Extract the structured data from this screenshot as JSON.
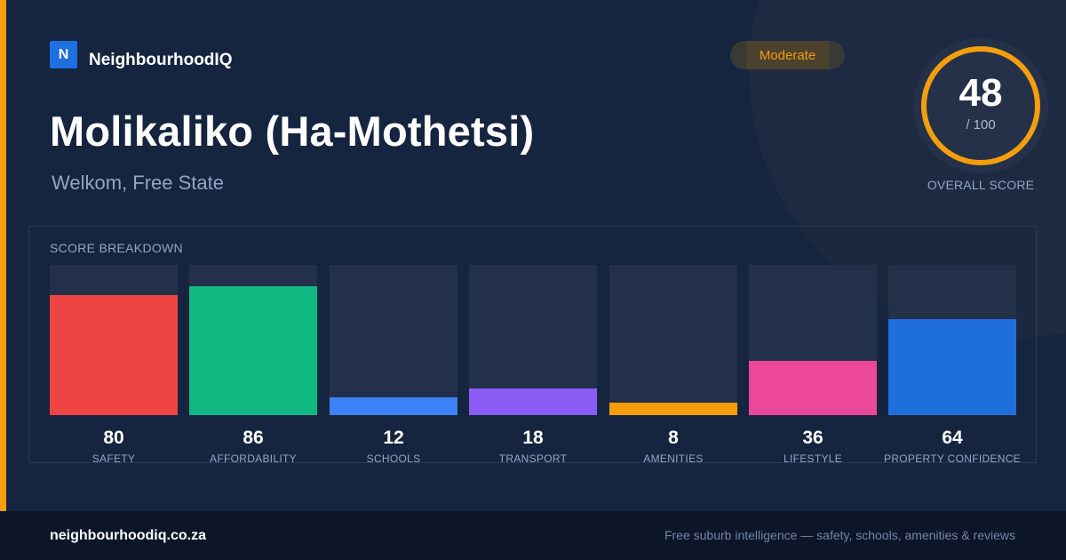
{
  "brand": {
    "logo_letter": "N",
    "name": "NeighbourhoodIQ",
    "logo_color": "#1e6fe0"
  },
  "badge": {
    "label": "Moderate",
    "color": "#f59e0b"
  },
  "suburb": {
    "name": "Molikaliko (Ha-Mothetsi)",
    "location": "Welkom, Free State"
  },
  "overall": {
    "score": "48",
    "max_label": "/ 100",
    "score_fraction": 0.48,
    "label": "OVERALL SCORE",
    "ring_color": "#f59e0b"
  },
  "breakdown": {
    "title": "SCORE BREAKDOWN",
    "categories": [
      {
        "label": "SAFETY",
        "value": 80,
        "color": "#ef4444"
      },
      {
        "label": "AFFORDABILITY",
        "value": 86,
        "color": "#10b981"
      },
      {
        "label": "SCHOOLS",
        "value": 12,
        "color": "#3b82f6"
      },
      {
        "label": "TRANSPORT",
        "value": 18,
        "color": "#8b5cf6"
      },
      {
        "label": "AMENITIES",
        "value": 8,
        "color": "#f59e0b"
      },
      {
        "label": "LIFESTYLE",
        "value": 36,
        "color": "#ec4899"
      },
      {
        "label": "PROPERTY CONFIDENCE",
        "value": 64,
        "color": "#1e6fdc"
      }
    ]
  },
  "footer": {
    "url": "neighbourhoodiq.co.za",
    "tagline": "Free suburb intelligence — safety, schools, amenities & reviews"
  }
}
